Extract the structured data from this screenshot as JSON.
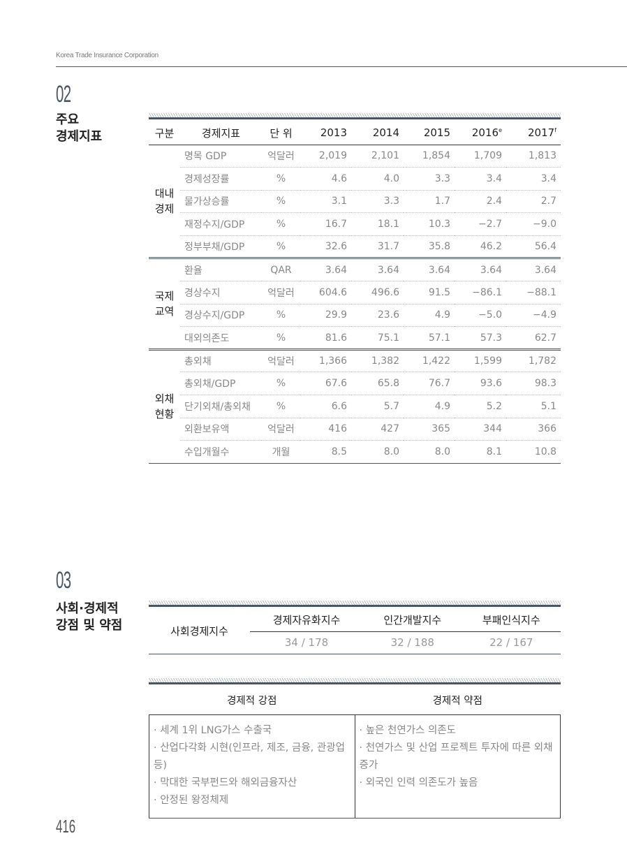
{
  "header": {
    "company": "Korea Trade Insurance Corporation"
  },
  "section02": {
    "number": "02",
    "title_line1": "주요",
    "title_line2": "경제지표",
    "columns": [
      "구분",
      "경제지표",
      "단 위",
      "2013",
      "2014",
      "2015",
      "2016",
      "2017"
    ],
    "col_superscripts": {
      "2016": "e",
      "2017": "f"
    },
    "groups": [
      {
        "name_line1": "대내",
        "name_line2": "경제",
        "rows": [
          {
            "indicator": "명목 GDP",
            "unit": "억달러",
            "values": [
              "2,019",
              "2,101",
              "1,854",
              "1,709",
              "1,813"
            ]
          },
          {
            "indicator": "경제성장률",
            "unit": "%",
            "values": [
              "4.6",
              "4.0",
              "3.3",
              "3.4",
              "3.4"
            ]
          },
          {
            "indicator": "물가상승률",
            "unit": "%",
            "values": [
              "3.1",
              "3.3",
              "1.7",
              "2.4",
              "2.7"
            ]
          },
          {
            "indicator": "재정수지/GDP",
            "unit": "%",
            "values": [
              "16.7",
              "18.1",
              "10.3",
              "−2.7",
              "−9.0"
            ]
          },
          {
            "indicator": "정부부채/GDP",
            "unit": "%",
            "values": [
              "32.6",
              "31.7",
              "35.8",
              "46.2",
              "56.4"
            ]
          }
        ]
      },
      {
        "name_line1": "국제",
        "name_line2": "교역",
        "rows": [
          {
            "indicator": "환율",
            "unit": "QAR",
            "values": [
              "3.64",
              "3.64",
              "3.64",
              "3.64",
              "3.64"
            ]
          },
          {
            "indicator": "경상수지",
            "unit": "억달러",
            "values": [
              "604.6",
              "496.6",
              "91.5",
              "−86.1",
              "−88.1"
            ]
          },
          {
            "indicator": "경상수지/GDP",
            "unit": "%",
            "values": [
              "29.9",
              "23.6",
              "4.9",
              "−5.0",
              "−4.9"
            ]
          },
          {
            "indicator": "대외의존도",
            "unit": "%",
            "values": [
              "81.6",
              "75.1",
              "57.1",
              "57.3",
              "62.7"
            ]
          }
        ]
      },
      {
        "name_line1": "외채",
        "name_line2": "현황",
        "rows": [
          {
            "indicator": "총외채",
            "unit": "억달러",
            "values": [
              "1,366",
              "1,382",
              "1,422",
              "1,599",
              "1,782"
            ]
          },
          {
            "indicator": "총외채/GDP",
            "unit": "%",
            "values": [
              "67.6",
              "65.8",
              "76.7",
              "93.6",
              "98.3"
            ]
          },
          {
            "indicator": "단기외채/총외채",
            "unit": "%",
            "values": [
              "6.6",
              "5.7",
              "4.9",
              "5.2",
              "5.1"
            ]
          },
          {
            "indicator": "외환보유액",
            "unit": "억달러",
            "values": [
              "416",
              "427",
              "365",
              "344",
              "366"
            ]
          },
          {
            "indicator": "수입개월수",
            "unit": "개월",
            "values": [
              "8.5",
              "8.0",
              "8.0",
              "8.1",
              "10.8"
            ]
          }
        ]
      }
    ]
  },
  "section03": {
    "number": "03",
    "title_line1": "사회·경제적",
    "title_line2": "강점 및 약점",
    "index_label": "사회경제지수",
    "indices": [
      {
        "name": "경제자유화지수",
        "value": "34 / 178"
      },
      {
        "name": "인간개발지수",
        "value": "32 / 188"
      },
      {
        "name": "부패인식지수",
        "value": "22 / 167"
      }
    ],
    "strengths_title": "경제적 강점",
    "weaknesses_title": "경제적 약점",
    "strengths": [
      "· 세계 1위 LNG가스 수출국",
      "· 산업다각화 시현(인프라, 제조, 금융, 관광업 등)",
      "· 막대한 국부펀드와 해외금융자산",
      "· 안정된 왕정체제"
    ],
    "weaknesses": [
      "· 높은 천연가스 의존도",
      "· 천연가스 및 산업 프로젝트 투자에 따른 외채증가",
      "· 외국인 인력 의존도가 높음"
    ]
  },
  "page_number": "416"
}
